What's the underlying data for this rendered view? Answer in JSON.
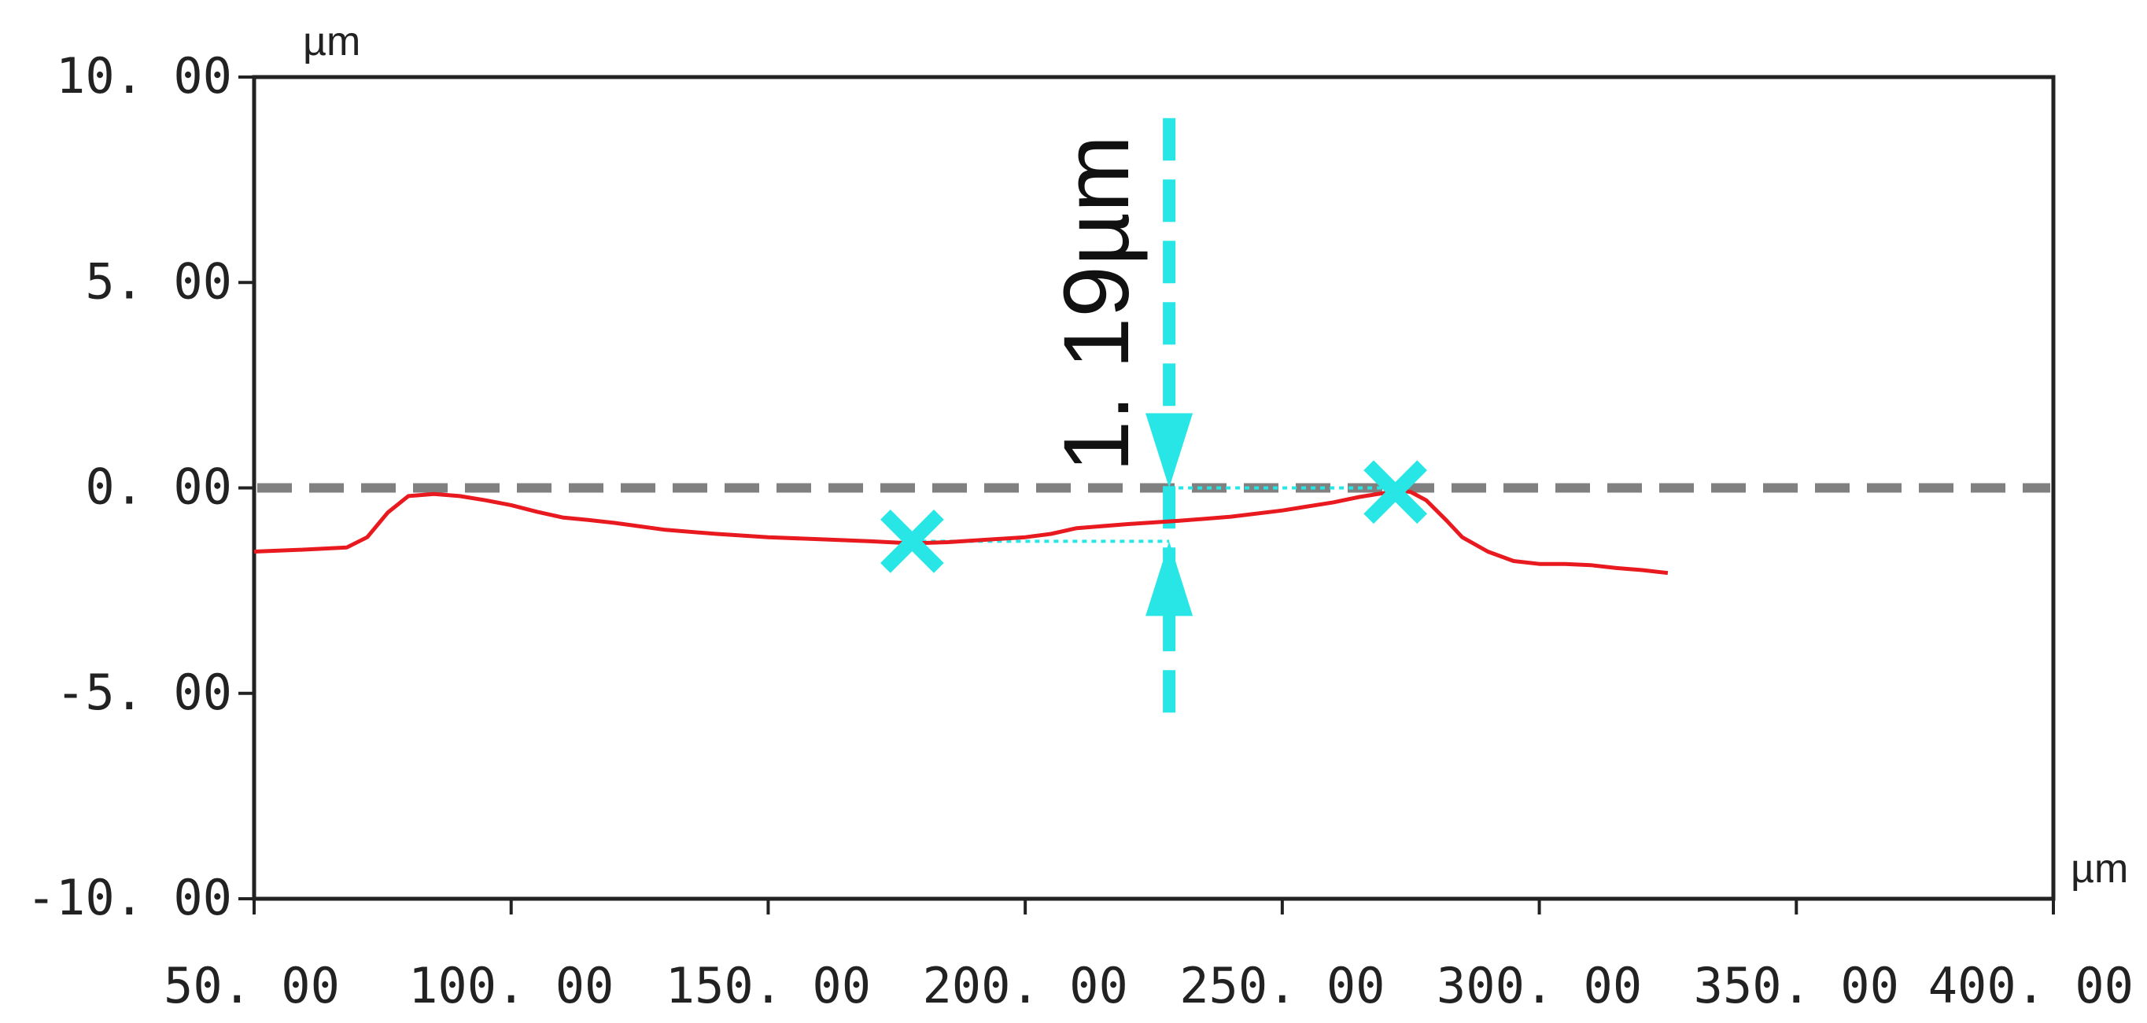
{
  "chart_data": {
    "type": "line",
    "title": "",
    "xlabel": "",
    "ylabel": "",
    "x_unit": "µm",
    "y_unit": "µm",
    "xlim": [
      50,
      400
    ],
    "ylim": [
      -10,
      10
    ],
    "x_ticks": [
      50,
      100,
      150,
      200,
      250,
      300,
      350,
      400
    ],
    "y_ticks": [
      10,
      5,
      0,
      -5,
      -10
    ],
    "x_tick_labels": [
      "50. 00",
      "100. 00",
      "150. 00",
      "200. 00",
      "250. 00",
      "300. 00",
      "350. 00",
      "400. 00"
    ],
    "y_tick_labels": [
      "10. 00",
      "5. 00",
      "0. 00",
      "-5. 00",
      "-10. 00"
    ],
    "grid": false,
    "legend": "none",
    "series": [
      {
        "color": "#e8191f",
        "x": [
          50,
          60,
          68,
          72,
          76,
          80,
          85,
          90,
          95,
          100,
          105,
          110,
          115,
          120,
          130,
          140,
          150,
          160,
          170,
          178,
          185,
          190,
          200,
          205,
          210,
          220,
          230,
          240,
          250,
          260,
          265,
          270,
          272,
          275,
          278,
          282,
          285,
          290,
          295,
          300,
          305,
          310,
          315,
          320,
          325
        ],
        "y": [
          -1.55,
          -1.5,
          -1.45,
          -1.2,
          -0.6,
          -0.2,
          -0.15,
          -0.2,
          -0.3,
          -0.42,
          -0.58,
          -0.72,
          -0.78,
          -0.85,
          -1.02,
          -1.12,
          -1.2,
          -1.25,
          -1.3,
          -1.35,
          -1.32,
          -1.28,
          -1.2,
          -1.12,
          -0.98,
          -0.88,
          -0.8,
          -0.7,
          -0.55,
          -0.35,
          -0.22,
          -0.12,
          -0.05,
          -0.1,
          -0.3,
          -0.8,
          -1.2,
          -1.55,
          -1.78,
          -1.85,
          -1.85,
          -1.88,
          -1.95,
          -2.0,
          -2.07
        ]
      }
    ],
    "reference_line": {
      "y": 0,
      "color": "#808080",
      "style": "dashed"
    },
    "markers": [
      {
        "x": 178,
        "y": -1.3,
        "shape": "x",
        "color": "#29e6e6"
      },
      {
        "x": 272,
        "y": -0.1,
        "shape": "x",
        "color": "#29e6e6"
      }
    ],
    "measurement": {
      "x": 228,
      "y_top": 9.0,
      "y_bottom": -5.5,
      "upper_y": 0,
      "lower_y": -1.3,
      "label": "1. 19µm",
      "color": "#29e6e6"
    }
  }
}
